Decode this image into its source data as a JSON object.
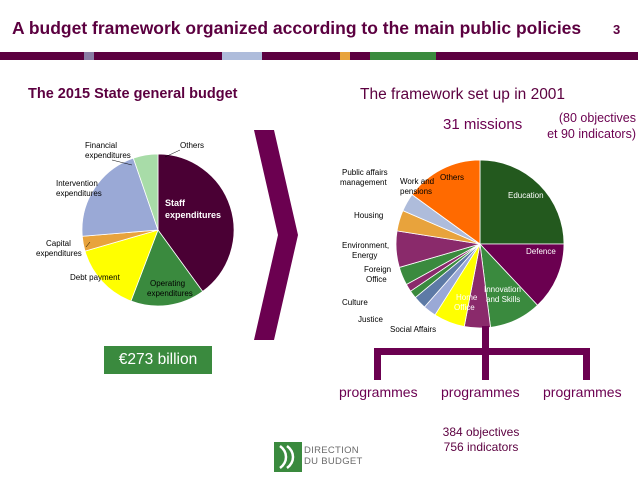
{
  "header": {
    "title": "A budget framework organized according to the main public policies",
    "page_number": "3",
    "band_colors": [
      "#8a7da5",
      "#5c0040",
      "#aebcdb",
      "#e8a33c",
      "#3a8a3e"
    ]
  },
  "left_panel": {
    "heading": "The 2015 State general budget",
    "total_label": "€273 billion",
    "pie": {
      "slices": [
        {
          "label": "Staff expenditures",
          "share": 0.38,
          "color": "#4a0034"
        },
        {
          "label": "Operating expenditures",
          "share": 0.15,
          "color": "#3a8a3e"
        },
        {
          "label": "Debt payment",
          "share": 0.14,
          "color": "#ffff00"
        },
        {
          "label": "Capital expenditures",
          "share": 0.03,
          "color": "#e8a33c"
        },
        {
          "label": "Intervention expenditures",
          "share": 0.2,
          "color": "#9aa9d6"
        },
        {
          "label": "Financial expenditures",
          "share": 0.0,
          "color": "#9aa9d6"
        },
        {
          "label": "Others",
          "share": 0.05,
          "color": "#a8dca8"
        }
      ]
    }
  },
  "right_panel": {
    "heading": "The framework set up in 2001",
    "missions_label": "31 missions",
    "objectives_line1": "(80 objectives",
    "objectives_line2": "et 90 indicators)",
    "pie": {
      "slices": [
        {
          "label": "Education",
          "share": 0.25,
          "color": "#23591e"
        },
        {
          "label": "Defence",
          "share": 0.13,
          "color": "#6b0050"
        },
        {
          "label": "Innovation and Skills",
          "share": 0.1,
          "color": "#3a8a3e"
        },
        {
          "label": "Home Office",
          "share": 0.05,
          "color": "#8a2a6b"
        },
        {
          "label": "Social Affairs",
          "share": 0.06,
          "color": "#ffff00"
        },
        {
          "label": "Justice",
          "share": 0.025,
          "color": "#9aa9d6"
        },
        {
          "label": "Culture",
          "share": 0.025,
          "color": "#5d7aa6"
        },
        {
          "label": "Foreign Office",
          "share": 0.015,
          "color": "#3a8a3e"
        },
        {
          "label": "Environment, Energy",
          "share": 0.015,
          "color": "#8a2a6b"
        },
        {
          "label": "Housing",
          "share": 0.035,
          "color": "#3a8a3e"
        },
        {
          "label": "Public affairs management",
          "share": 0.07,
          "color": "#8a2a6b"
        },
        {
          "label": "Work and pensions",
          "share": 0.04,
          "color": "#e8a33c"
        },
        {
          "label": "Others",
          "share": 0.035,
          "color": "#aebcdb"
        },
        {
          "label": "Others",
          "share": 0.15,
          "color": "#ff6a00"
        }
      ]
    },
    "programmes": [
      "programmes",
      "programmes",
      "programmes"
    ],
    "stats_line1": "384 objectives",
    "stats_line2": "756 indicators"
  },
  "logo": {
    "line1": "DIRECTION",
    "line2": "DU BUDGET"
  }
}
